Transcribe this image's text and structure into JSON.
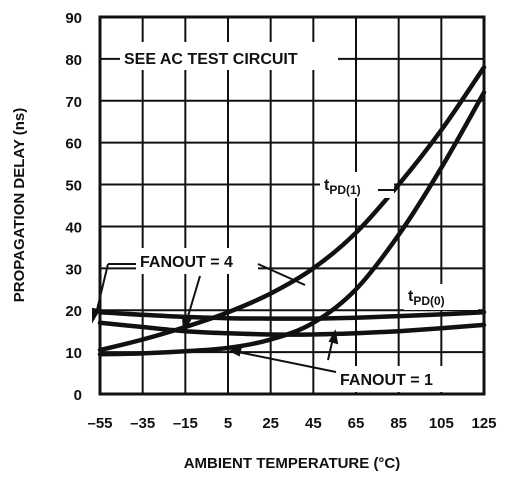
{
  "chart_data": {
    "type": "line",
    "title": "",
    "xlabel": "AMBIENT TEMPERATURE (°C)",
    "ylabel": "PROPAGATION DELAY (ns)",
    "xlim": [
      -55,
      125
    ],
    "ylim": [
      0,
      90
    ],
    "x_ticks": [
      "-55",
      "-35",
      "-15",
      "5",
      "25",
      "45",
      "65",
      "85",
      "105",
      "125"
    ],
    "y_ticks": [
      "0",
      "10",
      "20",
      "30",
      "40",
      "50",
      "60",
      "70",
      "80",
      "90"
    ],
    "grid": true,
    "series": [
      {
        "name": "tPD(1), FANOUT = 4",
        "x": [
          -55,
          -35,
          -15,
          5,
          25,
          45,
          65,
          85,
          105,
          125
        ],
        "y": [
          10.5,
          13,
          16,
          19.5,
          24,
          30,
          38.5,
          50,
          63,
          78
        ]
      },
      {
        "name": "tPD(1), FANOUT = 1",
        "x": [
          -55,
          -35,
          -15,
          5,
          25,
          45,
          65,
          85,
          105,
          125
        ],
        "y": [
          9.5,
          9.7,
          10.2,
          11,
          13,
          17,
          25,
          38,
          54,
          72
        ]
      },
      {
        "name": "tPD(0), FANOUT = 4",
        "x": [
          -55,
          -35,
          -15,
          5,
          25,
          45,
          65,
          85,
          105,
          125
        ],
        "y": [
          19.5,
          18.9,
          18.4,
          18.1,
          18,
          18,
          18.2,
          18.6,
          19,
          19.5
        ]
      },
      {
        "name": "tPD(0), FANOUT = 1",
        "x": [
          -55,
          -35,
          -15,
          5,
          25,
          45,
          65,
          85,
          105,
          125
        ],
        "y": [
          17,
          16,
          15,
          14.5,
          14.2,
          14.2,
          14.5,
          15,
          15.7,
          16.5
        ]
      }
    ],
    "annotations": {
      "test_circuit": "SEE AC TEST CIRCUIT",
      "tpd1_prefix": "t",
      "tpd1_sub": "PD(1)",
      "tpd0_prefix": "t",
      "tpd0_sub": "PD(0)",
      "fanout4": "FANOUT = 4",
      "fanout1": "FANOUT = 1"
    }
  }
}
